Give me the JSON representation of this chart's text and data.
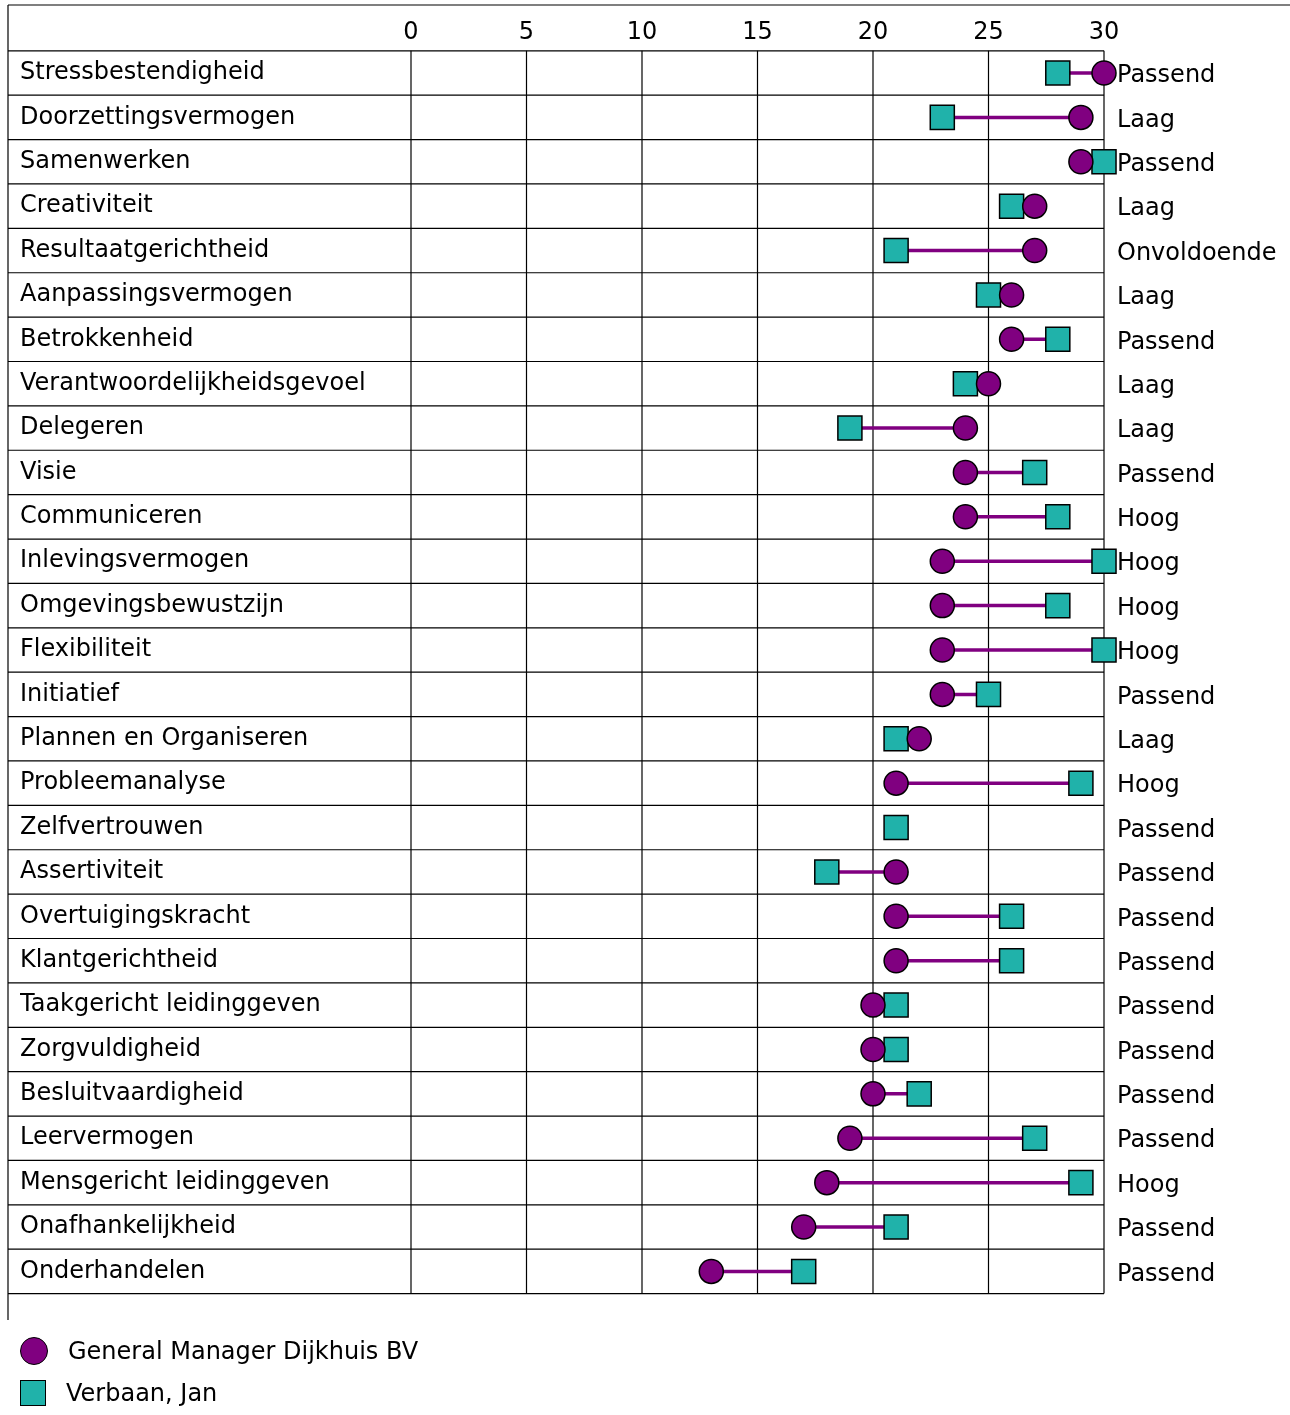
{
  "chart_data": {
    "type": "scatter",
    "orientation": "horizontal",
    "categories": [
      "Stressbestendigheid",
      "Doorzettingsvermogen",
      "Samenwerken",
      "Creativiteit",
      "Resultaatgerichtheid",
      "Aanpassingsvermogen",
      "Betrokkenheid",
      "Verantwoordelijkheidsgevoel",
      "Delegeren",
      "Visie",
      "Communiceren",
      "Inlevingsvermogen",
      "Omgevingsbewustzijn",
      "Flexibiliteit",
      "Initiatief",
      "Plannen en Organiseren",
      "Probleemanalyse",
      "Zelfvertrouwen",
      "Assertiviteit",
      "Overtuigingskracht",
      "Klantgerichtheid",
      "Taakgericht leidinggeven",
      "Zorgvuldigheid",
      "Besluitvaardigheid",
      "Leervermogen",
      "Mensgericht leidinggeven",
      "Onafhankelijkheid",
      "Onderhandelen"
    ],
    "series": [
      {
        "name": "General Manager Dijkhuis BV",
        "color": "#800080",
        "marker": "circle",
        "values": [
          30,
          29,
          29,
          27,
          27,
          26,
          26,
          25,
          24,
          24,
          24,
          23,
          23,
          23,
          23,
          22,
          21,
          null,
          21,
          21,
          21,
          20,
          20,
          20,
          19,
          18,
          17,
          13
        ]
      },
      {
        "name": "Verbaan, Jan",
        "color": "#20b2aa",
        "marker": "square",
        "values": [
          28,
          23,
          30,
          26,
          21,
          25,
          28,
          24,
          19,
          27,
          28,
          30,
          28,
          30,
          25,
          21,
          29,
          21,
          18,
          26,
          26,
          21,
          21,
          22,
          27,
          29,
          21,
          17
        ]
      }
    ],
    "xlim": [
      0,
      30
    ],
    "xticks": [
      0,
      5,
      10,
      15,
      20,
      25,
      30
    ],
    "grid": true,
    "legend": "bottom left",
    "annotations": [
      "Passend",
      "Laag",
      "Passend",
      "Laag",
      "Onvoldoende",
      "Laag",
      "Passend",
      "Laag",
      "Laag",
      "Passend",
      "Hoog",
      "Hoog",
      "Hoog",
      "Hoog",
      "Passend",
      "Laag",
      "Hoog",
      "Passend",
      "Passend",
      "Passend",
      "Passend",
      "Passend",
      "Passend",
      "Passend",
      "Passend",
      "Hoog",
      "Passend",
      "Passend"
    ]
  }
}
